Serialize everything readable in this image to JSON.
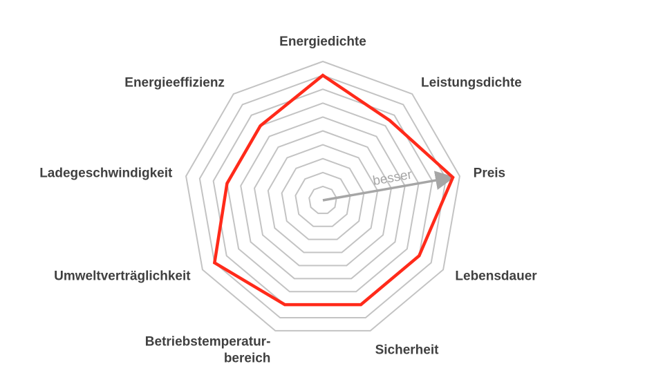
{
  "chart_data": {
    "type": "radar",
    "categories": [
      "Energiedichte",
      "Leistungsdichte",
      "Preis",
      "Lebensdauer",
      "Sicherheit",
      "Betriebstemperatur-\nbereich",
      "Umweltverträglichkeit",
      "Ladegeschwindigkeit",
      "Energieeffizienz"
    ],
    "series": [
      {
        "color": "#ff2a1a",
        "values": [
          9,
          7.5,
          9.5,
          8,
          8,
          8,
          9,
          7,
          7
        ]
      }
    ],
    "ylim": [
      0,
      10
    ],
    "yticks": [
      1,
      2,
      3,
      4,
      5,
      6,
      7,
      8,
      9,
      10
    ],
    "grid": true,
    "annotation": "besser"
  }
}
